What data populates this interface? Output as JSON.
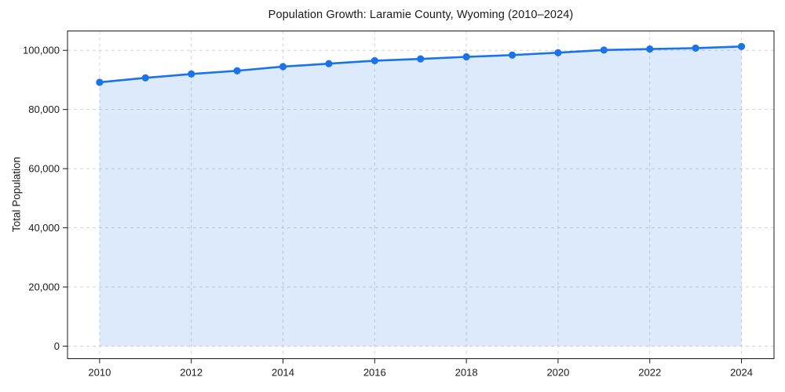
{
  "chart_data": {
    "type": "area",
    "title": "Population Growth: Laramie County, Wyoming (2010–2024)",
    "xlabel": "",
    "ylabel": "Total Population",
    "x": [
      2010,
      2011,
      2012,
      2013,
      2014,
      2015,
      2016,
      2017,
      2018,
      2019,
      2020,
      2021,
      2022,
      2023,
      2024
    ],
    "series": [
      {
        "name": "Total Population",
        "values": [
          89200,
          90700,
          92000,
          93100,
          94500,
          95500,
          96500,
          97100,
          97800,
          98400,
          99200,
          100100,
          100450,
          100750,
          101300
        ]
      }
    ],
    "xticks": [
      2010,
      2012,
      2014,
      2016,
      2018,
      2020,
      2022,
      2024
    ],
    "yticks": [
      0,
      20000,
      40000,
      60000,
      80000,
      100000
    ],
    "xlim": [
      2009.3,
      2024.71
    ],
    "ylim": [
      -4240,
      106550
    ],
    "grid": "on",
    "grid_style": "dashed",
    "legend": "none",
    "colors": {
      "line": "#1a73e8",
      "marker": "#1a73e8",
      "fill": "rgba(26,115,232,0.15)",
      "gridline": "#d3d3d3",
      "spine": "#1a1a1a",
      "text": "#1a1a1a"
    }
  }
}
